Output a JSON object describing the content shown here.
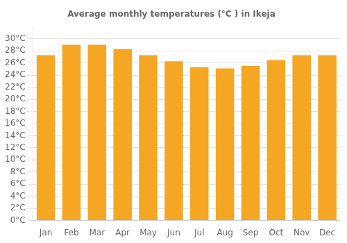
{
  "chart_data": {
    "type": "bar",
    "title": "Average monthly temperatures (°C ) in Ikeja",
    "categories": [
      "Jan",
      "Feb",
      "Mar",
      "Apr",
      "May",
      "Jun",
      "Jul",
      "Aug",
      "Sep",
      "Oct",
      "Nov",
      "Dec"
    ],
    "values": [
      27.3,
      29.0,
      29.0,
      28.3,
      27.3,
      26.3,
      25.3,
      25.1,
      25.5,
      26.5,
      27.3,
      27.3
    ],
    "color": "#F5A623",
    "ylim": [
      0,
      32
    ],
    "yticks": [
      {
        "value": 0,
        "label": "0°C"
      },
      {
        "value": 2,
        "label": "2°C"
      },
      {
        "value": 4,
        "label": "4°C"
      },
      {
        "value": 6,
        "label": "6°C"
      },
      {
        "value": 8,
        "label": "8°C"
      },
      {
        "value": 10,
        "label": "10°C"
      },
      {
        "value": 12,
        "label": "12°C"
      },
      {
        "value": 14,
        "label": "14°C"
      },
      {
        "value": 16,
        "label": "16°C"
      },
      {
        "value": 18,
        "label": "18°C"
      },
      {
        "value": 20,
        "label": "20°C"
      },
      {
        "value": 22,
        "label": "22°C"
      },
      {
        "value": 24,
        "label": "24°C"
      },
      {
        "value": 26,
        "label": "26°C"
      },
      {
        "value": 28,
        "label": "28°C"
      },
      {
        "value": 30,
        "label": "30°C"
      }
    ],
    "grid": true
  }
}
